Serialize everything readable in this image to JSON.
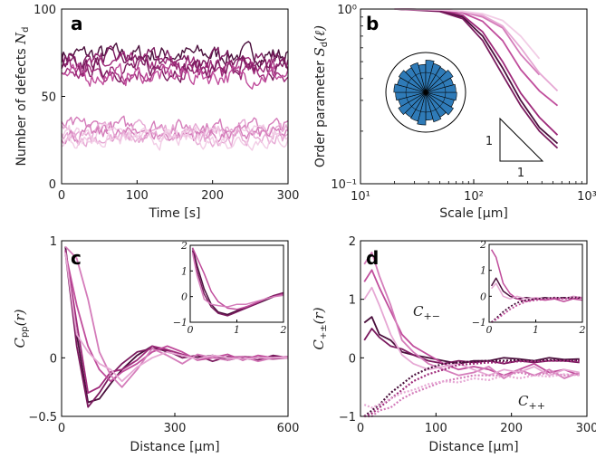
{
  "palette": [
    "#4a0f3c",
    "#7a1a5e",
    "#9e2a7a",
    "#c04d9c",
    "#d47cba",
    "#e6a8d4",
    "#f2cde6"
  ],
  "chart_data": [
    {
      "panel": "a",
      "type": "line",
      "ylabel_text": "Number of defects",
      "ylabel_math": "N",
      "ylabel_sub": "d",
      "xlabel": "Time [s]",
      "xlim": [
        0,
        300
      ],
      "ylim": [
        0,
        100
      ],
      "xticks": [
        "0",
        "100",
        "200",
        "300"
      ],
      "yticks": [
        "0",
        "50",
        "100"
      ],
      "xtick_values": [
        0,
        100,
        200,
        300
      ],
      "ytick_values": [
        0,
        50,
        100
      ],
      "groups": [
        {
          "level": "high",
          "series_means": [
            74,
            71,
            68,
            66,
            64,
            62
          ],
          "amplitude": 5
        },
        {
          "level": "low",
          "series_means": [
            33,
            31,
            29,
            28,
            26,
            25
          ],
          "amplitude": 4
        }
      ]
    },
    {
      "panel": "b",
      "type": "line",
      "scale": "log-log",
      "ylabel_text": "Order parameter",
      "ylabel_math": "S",
      "ylabel_sub": "d",
      "ylabel_arg": "(ℓ)",
      "xlabel": "Scale [μm]",
      "xlim": [
        10,
        1000
      ],
      "ylim": [
        0.1,
        1
      ],
      "xticks": [
        "10¹",
        "10²",
        "10³"
      ],
      "yticks": [
        "10⁻¹",
        "10⁰"
      ],
      "series": [
        {
          "x": [
            20,
            50,
            80,
            120,
            180,
            260,
            380,
            550
          ],
          "y": [
            1.0,
            0.98,
            0.9,
            0.7,
            0.46,
            0.3,
            0.21,
            0.17
          ]
        },
        {
          "x": [
            20,
            50,
            80,
            120,
            180,
            260,
            380,
            550
          ],
          "y": [
            1.0,
            0.97,
            0.88,
            0.66,
            0.42,
            0.28,
            0.2,
            0.16
          ]
        },
        {
          "x": [
            20,
            50,
            80,
            120,
            180,
            260,
            380,
            550
          ],
          "y": [
            1.0,
            0.99,
            0.92,
            0.74,
            0.5,
            0.33,
            0.24,
            0.19
          ]
        },
        {
          "x": [
            20,
            50,
            80,
            120,
            180,
            260,
            380,
            550
          ],
          "y": [
            1.0,
            0.99,
            0.95,
            0.85,
            0.66,
            0.45,
            0.34,
            0.28
          ]
        },
        {
          "x": [
            20,
            50,
            80,
            120,
            180,
            260,
            380
          ],
          "y": [
            1.0,
            0.99,
            0.96,
            0.9,
            0.78,
            0.55,
            0.42
          ]
        },
        {
          "x": [
            20,
            50,
            80,
            120,
            180,
            260,
            380,
            550
          ],
          "y": [
            1.0,
            0.99,
            0.97,
            0.92,
            0.8,
            0.6,
            0.43,
            0.34
          ]
        },
        {
          "x": [
            20,
            50,
            80,
            120,
            180,
            260,
            380
          ],
          "y": [
            1.0,
            0.99,
            0.97,
            0.94,
            0.86,
            0.7,
            0.52
          ]
        }
      ],
      "slope_triangle_labels": [
        "1",
        "1"
      ],
      "inset": {
        "type": "rose",
        "color": "#2f7bb8",
        "bins": 24
      }
    },
    {
      "panel": "c",
      "type": "line",
      "ylabel_math": "C",
      "ylabel_sub": "pp",
      "ylabel_arg": "(r)",
      "xlabel": "Distance [μm]",
      "xlim": [
        0,
        600
      ],
      "ylim": [
        -0.5,
        1
      ],
      "xticks": [
        "0",
        "300",
        "600"
      ],
      "yticks": [
        "−0.5",
        "0",
        "1"
      ],
      "x": [
        10,
        40,
        70,
        100,
        130,
        160,
        200,
        240,
        280,
        320,
        360,
        400,
        440,
        480,
        520,
        560,
        600
      ],
      "series": [
        {
          "values": [
            0.95,
            0.2,
            -0.38,
            -0.35,
            -0.22,
            -0.1,
            0.02,
            0.1,
            0.05,
            0.02,
            0.0,
            0.02,
            -0.02,
            0.01,
            0.0,
            0.01,
            0.0
          ]
        },
        {
          "values": [
            0.9,
            0.1,
            -0.42,
            -0.3,
            -0.15,
            -0.05,
            0.05,
            0.08,
            0.06,
            0.0,
            0.02,
            -0.03,
            0.01,
            0.0,
            -0.02,
            0.02,
            0.0
          ]
        },
        {
          "values": [
            0.92,
            0.3,
            -0.3,
            -0.25,
            -0.12,
            -0.1,
            -0.02,
            0.1,
            0.07,
            0.03,
            -0.01,
            0.02,
            0.0,
            0.01,
            0.0,
            -0.01,
            0.0
          ]
        },
        {
          "values": [
            0.9,
            0.45,
            0.1,
            -0.1,
            -0.2,
            -0.12,
            -0.05,
            0.05,
            0.1,
            0.05,
            -0.02,
            0.0,
            0.03,
            -0.02,
            0.02,
            0.0,
            0.01
          ]
        },
        {
          "values": [
            0.95,
            0.85,
            0.5,
            0.05,
            -0.15,
            -0.25,
            -0.1,
            0.08,
            0.02,
            -0.05,
            0.03,
            0.0,
            -0.02,
            0.01,
            -0.03,
            0.0,
            0.01
          ]
        },
        {
          "values": [
            0.9,
            0.2,
            0.05,
            -0.05,
            -0.1,
            -0.2,
            -0.08,
            0.0,
            0.05,
            0.02,
            -0.01,
            0.02,
            0.0,
            -0.01,
            0.0,
            0.0,
            0.0
          ]
        }
      ],
      "inset": {
        "xlim": [
          0,
          2
        ],
        "ylim": [
          -1,
          2
        ],
        "xticks": [
          "0",
          "1",
          "2"
        ],
        "yticks": [
          "−1",
          "0",
          "1",
          "2"
        ],
        "x": [
          0.05,
          0.15,
          0.3,
          0.45,
          0.6,
          0.8,
          1.0,
          1.2,
          1.4,
          1.6,
          1.8,
          2.0
        ],
        "series": [
          {
            "values": [
              1.9,
              1.2,
              0.3,
              -0.3,
              -0.6,
              -0.7,
              -0.55,
              -0.4,
              -0.3,
              -0.15,
              0.0,
              0.1
            ]
          },
          {
            "values": [
              1.8,
              1.0,
              0.1,
              -0.4,
              -0.65,
              -0.75,
              -0.6,
              -0.45,
              -0.3,
              -0.1,
              0.05,
              0.15
            ]
          },
          {
            "values": [
              1.9,
              1.5,
              0.9,
              0.2,
              -0.2,
              -0.45,
              -0.5,
              -0.4,
              -0.25,
              -0.1,
              0.0,
              0.1
            ]
          },
          {
            "values": [
              1.7,
              0.8,
              -0.1,
              -0.3,
              -0.35,
              -0.4,
              -0.3,
              -0.3,
              -0.2,
              -0.1,
              0.0,
              0.05
            ]
          }
        ]
      }
    },
    {
      "panel": "d",
      "type": "line",
      "ylabel_math": "C",
      "ylabel_sub": "+±",
      "ylabel_arg": "(r)",
      "xlabel": "Distance [μm]",
      "xlim": [
        0,
        300
      ],
      "ylim": [
        -1,
        2
      ],
      "xticks": [
        "0",
        "100",
        "200",
        "300"
      ],
      "yticks": [
        "−1",
        "0",
        "1",
        "2"
      ],
      "annotations": [
        "C",
        "+−",
        "C",
        "++"
      ],
      "x": [
        5,
        15,
        25,
        40,
        55,
        70,
        90,
        110,
        130,
        150,
        170,
        190,
        210,
        230,
        250,
        270,
        290
      ],
      "series_pm": [
        {
          "values": [
            0.6,
            0.7,
            0.4,
            0.3,
            0.1,
            0.05,
            0.0,
            -0.05,
            -0.1,
            -0.05,
            -0.05,
            0.0,
            -0.02,
            -0.05,
            0.0,
            -0.03,
            -0.02
          ]
        },
        {
          "values": [
            0.3,
            0.5,
            0.35,
            0.2,
            0.15,
            0.05,
            -0.05,
            -0.1,
            -0.05,
            -0.08,
            -0.05,
            -0.1,
            -0.05,
            -0.08,
            -0.05,
            -0.05,
            -0.08
          ]
        },
        {
          "values": [
            1.3,
            1.5,
            1.2,
            0.8,
            0.4,
            0.2,
            0.05,
            -0.1,
            -0.2,
            -0.15,
            -0.2,
            -0.3,
            -0.2,
            -0.1,
            -0.25,
            -0.2,
            -0.3
          ]
        },
        {
          "values": [
            1.6,
            1.8,
            1.4,
            0.9,
            0.3,
            0.1,
            -0.1,
            -0.2,
            -0.3,
            -0.25,
            -0.15,
            -0.35,
            -0.2,
            -0.3,
            -0.2,
            -0.35,
            -0.25
          ]
        },
        {
          "values": [
            1.0,
            1.2,
            0.9,
            0.4,
            0.05,
            -0.1,
            -0.2,
            -0.15,
            -0.1,
            -0.2,
            -0.3,
            -0.2,
            -0.25,
            -0.15,
            -0.3,
            -0.2,
            -0.25
          ]
        }
      ],
      "series_pp": [
        {
          "values": [
            -1.0,
            -0.9,
            -0.8,
            -0.6,
            -0.45,
            -0.3,
            -0.18,
            -0.1,
            -0.08,
            -0.06,
            -0.05,
            -0.05,
            -0.04,
            -0.05,
            -0.04,
            -0.05,
            -0.04
          ]
        },
        {
          "values": [
            -1.0,
            -0.95,
            -0.85,
            -0.7,
            -0.55,
            -0.4,
            -0.28,
            -0.2,
            -0.12,
            -0.1,
            -0.08,
            -0.08,
            -0.06,
            -0.06,
            -0.05,
            -0.05,
            -0.05
          ]
        },
        {
          "values": [
            -1.0,
            -1.0,
            -0.9,
            -0.85,
            -0.7,
            -0.6,
            -0.5,
            -0.4,
            -0.35,
            -0.3,
            -0.3,
            -0.3,
            -0.25,
            -0.3,
            -0.25,
            -0.3,
            -0.28
          ]
        },
        {
          "values": [
            -0.8,
            -0.85,
            -0.8,
            -0.7,
            -0.6,
            -0.55,
            -0.45,
            -0.4,
            -0.42,
            -0.35,
            -0.38,
            -0.3,
            -0.35,
            -0.3,
            -0.32,
            -0.28,
            -0.3
          ]
        }
      ],
      "inset": {
        "xlim": [
          0,
          2
        ],
        "ylim": [
          -1,
          2
        ],
        "xticks": [
          "0",
          "1",
          "2"
        ],
        "yticks": [
          "−1",
          "0",
          "1",
          "2"
        ],
        "x": [
          0.05,
          0.15,
          0.3,
          0.45,
          0.6,
          0.8,
          1.0,
          1.2,
          1.4,
          1.6,
          1.8,
          2.0
        ],
        "series_pm": [
          {
            "values": [
              0.4,
              0.7,
              0.2,
              0.0,
              -0.1,
              -0.05,
              -0.1,
              -0.05,
              -0.1,
              -0.05,
              -0.1,
              -0.05
            ]
          },
          {
            "values": [
              1.8,
              1.5,
              0.5,
              0.1,
              -0.1,
              -0.2,
              -0.1,
              -0.15,
              -0.1,
              -0.2,
              -0.1,
              -0.15
            ]
          },
          {
            "values": [
              0.3,
              0.5,
              0.0,
              -0.1,
              0.0,
              -0.1,
              -0.05,
              -0.1,
              -0.05,
              -0.1,
              0.0,
              -0.05
            ]
          }
        ],
        "series_pp": [
          {
            "values": [
              -1.0,
              -0.85,
              -0.6,
              -0.4,
              -0.25,
              -0.15,
              -0.1,
              -0.08,
              -0.05,
              -0.06,
              -0.04,
              -0.05
            ]
          },
          {
            "values": [
              -1.0,
              -0.9,
              -0.7,
              -0.5,
              -0.35,
              -0.2,
              -0.15,
              -0.12,
              -0.08,
              -0.1,
              -0.08,
              -0.06
            ]
          }
        ]
      }
    }
  ]
}
